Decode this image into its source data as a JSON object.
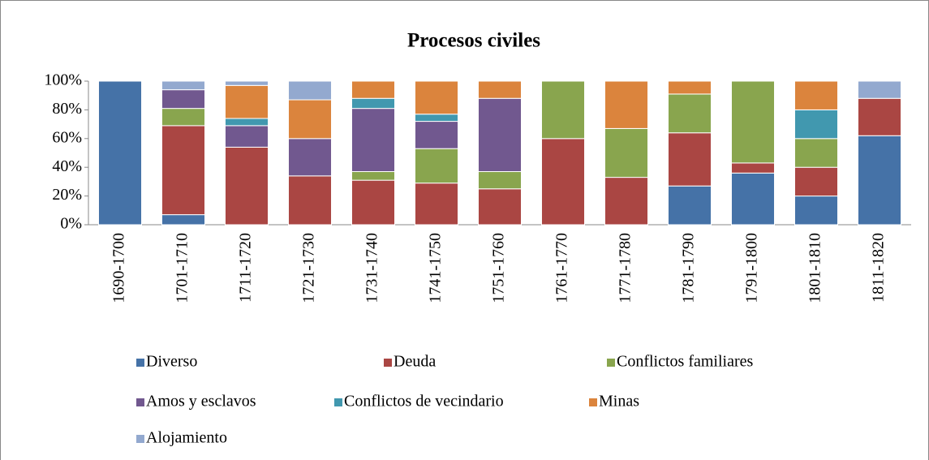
{
  "chart_data": {
    "type": "stacked_bar_100",
    "title": "Procesos civiles",
    "categories": [
      "1690-1700",
      "1701-1710",
      "1711-1720",
      "1721-1730",
      "1731-1740",
      "1741-1750",
      "1751-1760",
      "1761-1770",
      "1771-1780",
      "1781-1790",
      "1791-1800",
      "1801-1810",
      "1811-1820"
    ],
    "series": [
      {
        "name": "Diverso",
        "color": "#4572a7",
        "values": [
          100,
          7,
          0,
          0,
          0,
          0,
          0,
          0,
          0,
          27,
          36,
          20,
          62
        ]
      },
      {
        "name": "Deuda",
        "color": "#aa4643",
        "values": [
          0,
          62,
          54,
          34,
          31,
          29,
          25,
          60,
          33,
          37,
          7,
          20,
          26
        ]
      },
      {
        "name": "Conflictos familiares",
        "color": "#89a54e",
        "values": [
          0,
          12,
          0,
          0,
          6,
          24,
          12,
          40,
          34,
          27,
          57,
          20,
          0
        ]
      },
      {
        "name": "Amos y esclavos",
        "color": "#71588f",
        "values": [
          0,
          13,
          15,
          26,
          44,
          19,
          51,
          0,
          0,
          0,
          0,
          0,
          0
        ]
      },
      {
        "name": "Conflictos de vecindario",
        "color": "#4198af",
        "values": [
          0,
          0,
          5,
          0,
          7,
          5,
          0,
          0,
          0,
          0,
          0,
          20,
          0
        ]
      },
      {
        "name": "Minas",
        "color": "#db843d",
        "values": [
          0,
          0,
          23,
          27,
          12,
          23,
          12,
          0,
          33,
          9,
          0,
          20,
          0
        ]
      },
      {
        "name": "Alojamiento",
        "color": "#93a9cf",
        "values": [
          0,
          6,
          3,
          13,
          0,
          0,
          0,
          0,
          0,
          0,
          0,
          0,
          12
        ]
      }
    ],
    "ylim": [
      0,
      100
    ],
    "yticks": [
      {
        "value": 0,
        "label": "0%"
      },
      {
        "value": 20,
        "label": "20%"
      },
      {
        "value": 40,
        "label": "40%"
      },
      {
        "value": 60,
        "label": "60%"
      },
      {
        "value": 80,
        "label": "80%"
      },
      {
        "value": 100,
        "label": "100%"
      }
    ],
    "grid": false,
    "legend": "bottom"
  }
}
